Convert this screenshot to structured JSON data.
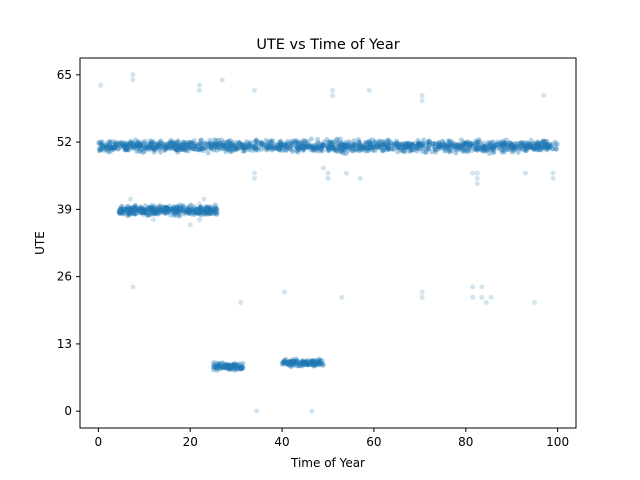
{
  "chart_data": {
    "type": "scatter",
    "title": "UTE vs Time of Year",
    "xlabel": "Time of Year",
    "ylabel": "UTE",
    "xlim": [
      -4,
      104
    ],
    "ylim": [
      -3.25,
      68.25
    ],
    "xticks": [
      0,
      20,
      40,
      60,
      80,
      100
    ],
    "xtick_labels": [
      "0",
      "20",
      "40",
      "60",
      "80",
      "100"
    ],
    "yticks": [
      0,
      13,
      26,
      39,
      52,
      65
    ],
    "ytick_labels": [
      "0",
      "13",
      "26",
      "39",
      "52",
      "65"
    ],
    "grid": false,
    "marker_color": "#1f77b4",
    "clusters": [
      {
        "x_range": [
          0,
          100
        ],
        "y_center": 51.2,
        "y_spread": 1.6,
        "count": 1400
      },
      {
        "x_range": [
          4.5,
          26
        ],
        "y_center": 38.8,
        "y_spread": 1.3,
        "count": 380
      },
      {
        "x_range": [
          25,
          31.5
        ],
        "y_center": 8.6,
        "y_spread": 1.0,
        "count": 110
      },
      {
        "x_range": [
          40,
          49
        ],
        "y_center": 9.3,
        "y_spread": 0.9,
        "count": 140
      }
    ],
    "outliers": [
      {
        "x": 0.5,
        "y": 63
      },
      {
        "x": 7.5,
        "y": 65
      },
      {
        "x": 7.5,
        "y": 64
      },
      {
        "x": 22,
        "y": 63
      },
      {
        "x": 22,
        "y": 62
      },
      {
        "x": 27,
        "y": 64
      },
      {
        "x": 34,
        "y": 62
      },
      {
        "x": 51,
        "y": 62
      },
      {
        "x": 51,
        "y": 61
      },
      {
        "x": 59,
        "y": 62
      },
      {
        "x": 70.5,
        "y": 61
      },
      {
        "x": 70.5,
        "y": 60
      },
      {
        "x": 97,
        "y": 61
      },
      {
        "x": 7.5,
        "y": 24
      },
      {
        "x": 31,
        "y": 21
      },
      {
        "x": 40.5,
        "y": 23
      },
      {
        "x": 53,
        "y": 22
      },
      {
        "x": 70.5,
        "y": 23
      },
      {
        "x": 70.5,
        "y": 22
      },
      {
        "x": 81.5,
        "y": 24
      },
      {
        "x": 81.5,
        "y": 22
      },
      {
        "x": 83.5,
        "y": 24
      },
      {
        "x": 83.5,
        "y": 22
      },
      {
        "x": 84.5,
        "y": 21
      },
      {
        "x": 85.5,
        "y": 22
      },
      {
        "x": 95,
        "y": 21
      },
      {
        "x": 34.5,
        "y": 0
      },
      {
        "x": 46.5,
        "y": 0
      },
      {
        "x": 34,
        "y": 45
      },
      {
        "x": 34,
        "y": 46
      },
      {
        "x": 50,
        "y": 45
      },
      {
        "x": 50,
        "y": 46
      },
      {
        "x": 49,
        "y": 47
      },
      {
        "x": 54,
        "y": 46
      },
      {
        "x": 57,
        "y": 45
      },
      {
        "x": 82.5,
        "y": 44
      },
      {
        "x": 82.5,
        "y": 45
      },
      {
        "x": 82.5,
        "y": 46
      },
      {
        "x": 81.5,
        "y": 46
      },
      {
        "x": 93,
        "y": 46
      },
      {
        "x": 99,
        "y": 45
      },
      {
        "x": 99,
        "y": 46
      },
      {
        "x": 12,
        "y": 37
      },
      {
        "x": 20,
        "y": 36
      },
      {
        "x": 22,
        "y": 37
      },
      {
        "x": 7,
        "y": 41
      },
      {
        "x": 22,
        "y": 40
      },
      {
        "x": 23,
        "y": 41
      }
    ]
  }
}
